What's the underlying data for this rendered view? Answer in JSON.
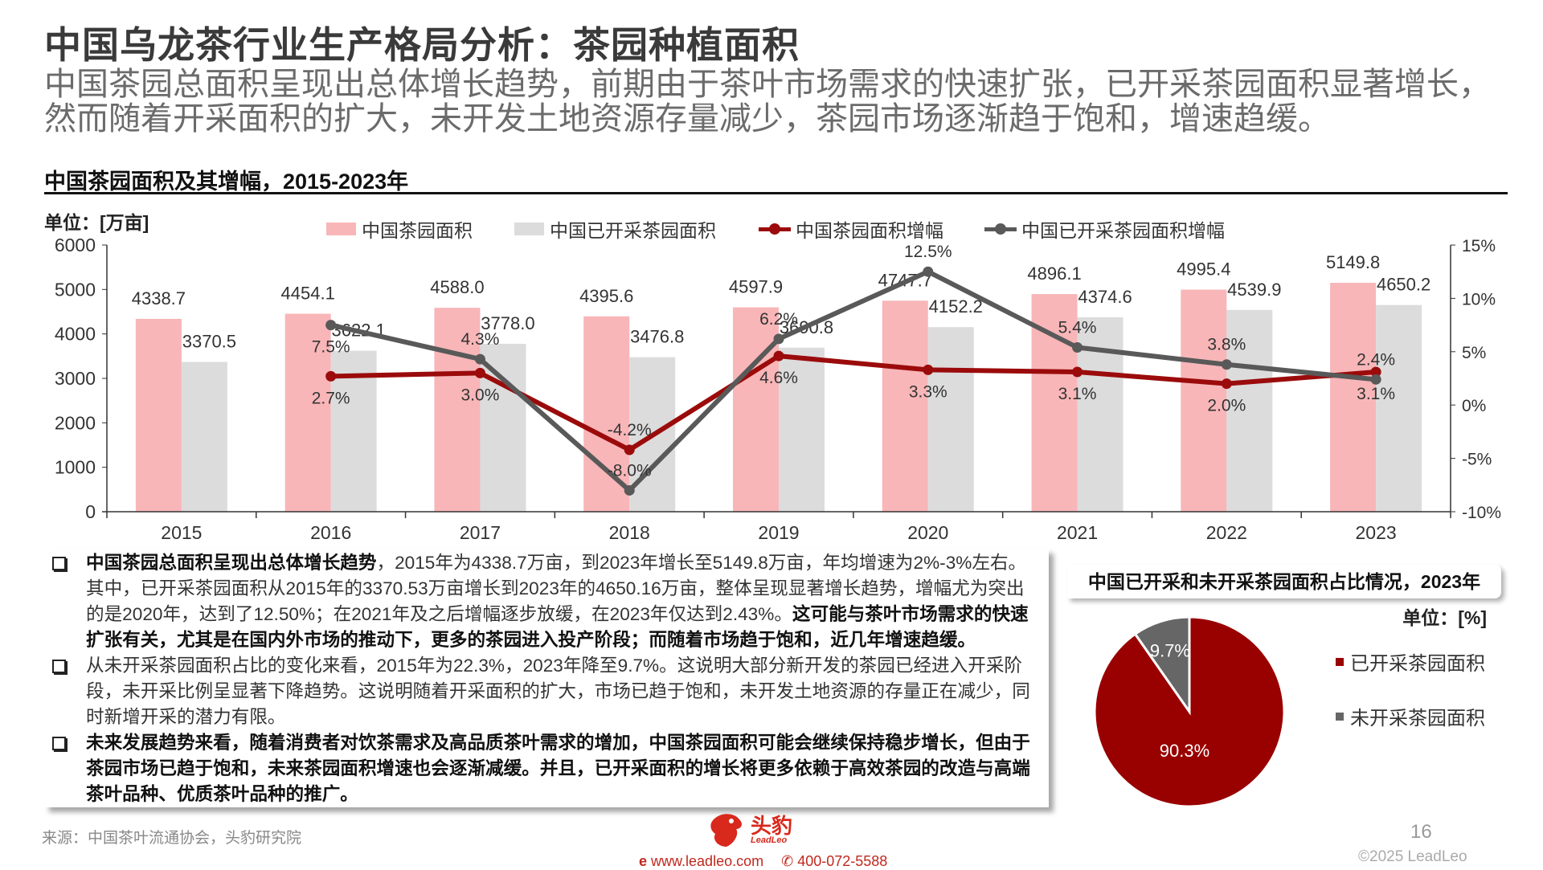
{
  "header": {
    "title": "中国乌龙茶行业生产格局分析：茶园种植面积",
    "subtitle_lines": [
      "中国茶园总面积呈现出总体增长趋势，前期由于茶叶市场需求的快速扩张，已开采茶园面积显著增长，",
      "然而随着开采面积的扩大，未开发土地资源存量减少，茶园市场逐渐趋于饱和，增速趋缓。"
    ]
  },
  "colors": {
    "total_area_bar": "#F8B6B8",
    "harvested_area_bar": "#DCDCDC",
    "total_growth_line": "#9B0B0B",
    "harvested_growth_line": "#595959",
    "pie_harvested": "#990000",
    "pie_unharvested": "#666666"
  },
  "chart_data": [
    {
      "type": "bar+line",
      "title": "中国茶园面积及其增幅，2015-2023年",
      "unit_label": "单位：[万亩]",
      "categories": [
        "2015",
        "2016",
        "2017",
        "2018",
        "2019",
        "2020",
        "2021",
        "2022",
        "2023"
      ],
      "y_left": {
        "range": [
          0,
          6000
        ],
        "ticks": [
          "6000",
          "5000",
          "4000",
          "3000",
          "2000",
          "1000",
          "0"
        ]
      },
      "y_right": {
        "range": [
          -10,
          15
        ],
        "ticks": [
          "15%",
          "10%",
          "5%",
          "0%",
          "-5%",
          "-10%"
        ]
      },
      "legend_position": "top",
      "series": [
        {
          "name": "中国茶园面积",
          "type": "bar",
          "axis": "left",
          "values": [
            4338.7,
            4454.1,
            4588.0,
            4395.6,
            4597.9,
            4747.7,
            4896.1,
            4995.4,
            5149.8
          ],
          "labels": [
            "4338.7",
            "4454.1",
            "4588.0",
            "4395.6",
            "4597.9",
            "4747.7",
            "4896.1",
            "4995.4",
            "5149.8"
          ]
        },
        {
          "name": "中国已开采茶园面积",
          "type": "bar",
          "axis": "left",
          "values": [
            3370.5,
            3622.1,
            3778.0,
            3476.8,
            3690.8,
            4152.2,
            4374.6,
            4539.9,
            4650.2
          ],
          "labels": [
            "3370.5",
            "3622.1",
            "3778.0",
            "3476.8",
            "3690.8",
            "4152.2",
            "4374.6",
            "4539.9",
            "4650.2"
          ]
        },
        {
          "name": "中国茶园面积增幅",
          "type": "line",
          "axis": "right",
          "values": [
            null,
            2.7,
            3.0,
            -4.2,
            4.6,
            3.3,
            3.1,
            2.0,
            3.1
          ],
          "labels": [
            "",
            "2.7%",
            "3.0%",
            "-4.2%",
            "4.6%",
            "3.3%",
            "3.1%",
            "2.0%",
            "3.1%"
          ]
        },
        {
          "name": "中国已开采茶园面积增幅",
          "type": "line",
          "axis": "right",
          "values": [
            null,
            7.5,
            4.3,
            -8.0,
            6.2,
            12.5,
            5.4,
            3.8,
            2.4
          ],
          "labels": [
            "",
            "7.5%",
            "4.3%",
            "-8.0%",
            "6.2%",
            "12.5%",
            "5.4%",
            "3.8%",
            "2.4%"
          ]
        }
      ]
    },
    {
      "type": "pie",
      "title": "中国已开采和未开采茶园面积占比情况，2023年",
      "unit_label": "单位：[%]",
      "legend_position": "right",
      "slices": [
        {
          "name": "已开采茶园面积",
          "value": 90.3,
          "label": "90.3%"
        },
        {
          "name": "未开采茶园面积",
          "value": 9.7,
          "label": "9.7%"
        }
      ]
    }
  ],
  "bullets": [
    {
      "bold_lead": "中国茶园总面积呈现出总体增长趋势",
      "text": "，2015年为4338.7万亩，到2023年增长至5149.8万亩，年均增速为2%-3%左右。其中，已开采茶园面积从2015年的3370.53万亩增长到2023年的4650.16万亩，整体呈现显著增长趋势，增幅尤为突出的是2020年，达到了12.50%；在2021年及之后增幅逐步放缓，在2023年仅达到2.43%。",
      "bold_tail": "这可能与茶叶市场需求的快速扩张有关，尤其是在国内外市场的推动下，更多的茶园进入投产阶段；而随着市场趋于饱和，近几年增速趋缓。"
    },
    {
      "text": "从未开采茶园面积占比的变化来看，2015年为22.3%，2023年降至9.7%。这说明大部分新开发的茶园已经进入开采阶段，未开采比例呈显著下降趋势。这说明随着开采面积的扩大，市场已趋于饱和，未开发土地资源的存量正在减少，同时新增开采的潜力有限。"
    },
    {
      "bold_lead": "未来发展趋势来看，随着消费者对饮茶需求及高品质茶叶需求的增加，中国茶园面积可能会继续保持稳步增长，但由于茶园市场已趋于饱和，未来茶园面积增速也会逐渐减缓。并且，已开采面积的增长将更多依赖于高效茶园的改造与高端茶叶品种、优质茶叶品种的推广。"
    }
  ],
  "footer": {
    "source": "来源：中国茶叶流通协会，头豹研究院",
    "logo_cn": "头豹",
    "logo_en": "LeadLeo",
    "website": "www.leadleo.com",
    "phone": "400-072-5588",
    "page_number": "16",
    "copyright": "©2025 LeadLeo"
  }
}
